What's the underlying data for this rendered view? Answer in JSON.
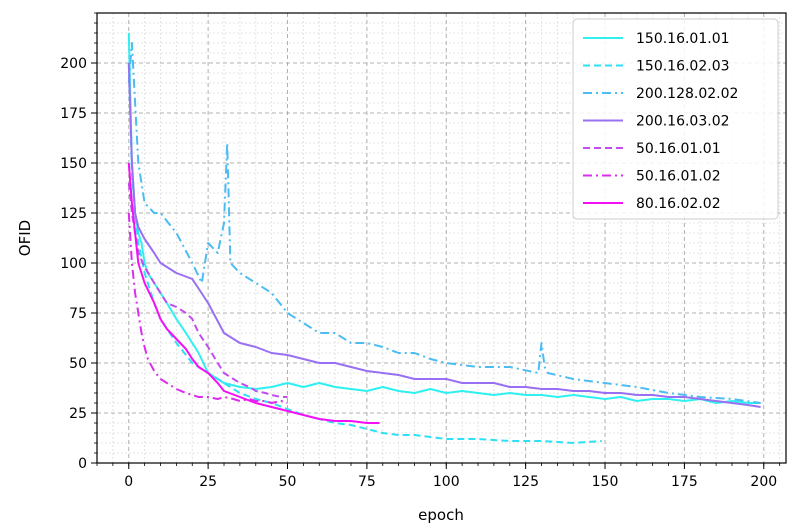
{
  "chart_data": {
    "type": "line",
    "title": "",
    "xlabel": "epoch",
    "ylabel": "OFID",
    "xlim": [
      -10,
      207
    ],
    "ylim": [
      0,
      225
    ],
    "xticks": [
      0,
      25,
      50,
      75,
      100,
      125,
      150,
      175,
      200
    ],
    "yticks": [
      0,
      25,
      50,
      75,
      100,
      125,
      150,
      175,
      200
    ],
    "grid": "major dashed, minor dotted",
    "legend_position": "top-right",
    "series": [
      {
        "name": "150.16.01.01",
        "color": "#2ff0f0",
        "dash": "solid",
        "x": [
          0,
          1,
          2,
          3,
          4,
          5,
          6,
          8,
          10,
          12,
          15,
          18,
          20,
          22,
          25,
          28,
          30,
          35,
          40,
          45,
          50,
          55,
          60,
          65,
          70,
          75,
          80,
          85,
          90,
          95,
          100,
          105,
          110,
          115,
          120,
          125,
          130,
          135,
          140,
          145,
          150,
          155,
          160,
          165,
          170,
          175,
          180,
          185,
          190,
          195,
          199
        ],
        "y": [
          215,
          150,
          125,
          115,
          110,
          100,
          95,
          90,
          85,
          80,
          72,
          65,
          60,
          55,
          45,
          42,
          40,
          38,
          37,
          38,
          40,
          38,
          40,
          38,
          37,
          36,
          38,
          36,
          35,
          37,
          35,
          36,
          35,
          34,
          35,
          34,
          34,
          33,
          34,
          33,
          32,
          33,
          31,
          32,
          32,
          31,
          32,
          30,
          31,
          30,
          30
        ]
      },
      {
        "name": "150.16.02.03",
        "color": "#2ee0f6",
        "dash": "dashed",
        "x": [
          0,
          1,
          2,
          3,
          5,
          8,
          10,
          15,
          20,
          25,
          30,
          35,
          40,
          45,
          50,
          55,
          60,
          65,
          70,
          75,
          80,
          85,
          90,
          95,
          100,
          110,
          120,
          130,
          140,
          149
        ],
        "y": [
          200,
          145,
          125,
          110,
          95,
          80,
          72,
          60,
          50,
          45,
          40,
          35,
          32,
          30,
          27,
          24,
          22,
          20,
          19,
          17,
          15,
          14,
          14,
          13,
          12,
          12,
          11,
          11,
          10,
          11
        ]
      },
      {
        "name": "200.128.02.02",
        "color": "#4cbcf2",
        "dash": "dashdot",
        "x": [
          0,
          1,
          2,
          3,
          5,
          8,
          10,
          15,
          20,
          23,
          25,
          28,
          30,
          31,
          32,
          35,
          40,
          45,
          50,
          55,
          60,
          65,
          70,
          75,
          80,
          85,
          90,
          95,
          100,
          110,
          120,
          129,
          130,
          131,
          132,
          140,
          150,
          160,
          170,
          180,
          190,
          199
        ],
        "y": [
          190,
          210,
          180,
          150,
          130,
          125,
          125,
          115,
          100,
          90,
          110,
          105,
          120,
          160,
          100,
          95,
          90,
          85,
          75,
          70,
          65,
          65,
          60,
          60,
          58,
          55,
          55,
          52,
          50,
          48,
          48,
          45,
          60,
          48,
          45,
          42,
          40,
          38,
          35,
          33,
          32,
          30
        ]
      },
      {
        "name": "200.16.03.02",
        "color": "#9970f2",
        "dash": "solid",
        "x": [
          0,
          1,
          2,
          3,
          5,
          8,
          10,
          15,
          20,
          25,
          30,
          35,
          40,
          45,
          50,
          55,
          60,
          65,
          70,
          75,
          80,
          85,
          90,
          95,
          100,
          105,
          110,
          115,
          120,
          125,
          130,
          135,
          140,
          145,
          150,
          155,
          160,
          165,
          170,
          175,
          180,
          185,
          190,
          195,
          199
        ],
        "y": [
          200,
          150,
          125,
          118,
          112,
          105,
          100,
          95,
          92,
          80,
          65,
          60,
          58,
          55,
          54,
          52,
          50,
          50,
          48,
          46,
          45,
          44,
          42,
          42,
          42,
          40,
          40,
          40,
          38,
          38,
          37,
          37,
          36,
          36,
          35,
          35,
          34,
          34,
          33,
          33,
          32,
          31,
          30,
          29,
          28
        ]
      },
      {
        "name": "50.16.01.01",
        "color": "#c24cee",
        "dash": "dashed",
        "x": [
          0,
          1,
          2,
          3,
          5,
          8,
          10,
          12,
          15,
          18,
          20,
          22,
          25,
          28,
          30,
          33,
          35,
          38,
          40,
          43,
          45,
          48,
          50
        ],
        "y": [
          140,
          125,
          115,
          105,
          98,
          90,
          85,
          80,
          78,
          75,
          72,
          65,
          58,
          50,
          45,
          42,
          40,
          38,
          36,
          35,
          34,
          33,
          33
        ]
      },
      {
        "name": "50.16.01.02",
        "color": "#dc2cee",
        "dash": "dashdot",
        "x": [
          0,
          1,
          2,
          3,
          4,
          5,
          6,
          8,
          10,
          12,
          15,
          18,
          20,
          22,
          25,
          28,
          30,
          33,
          35,
          38,
          40,
          43,
          45,
          48,
          50
        ],
        "y": [
          125,
          100,
          85,
          75,
          65,
          58,
          52,
          46,
          42,
          40,
          37,
          35,
          34,
          33,
          33,
          32,
          33,
          32,
          31,
          32,
          31,
          31,
          30,
          31,
          30
        ]
      },
      {
        "name": "80.16.02.02",
        "color": "#f50ff5",
        "dash": "solid",
        "x": [
          0,
          1,
          2,
          3,
          5,
          8,
          10,
          12,
          15,
          18,
          20,
          22,
          25,
          28,
          30,
          35,
          40,
          45,
          50,
          55,
          60,
          65,
          70,
          75,
          79
        ],
        "y": [
          150,
          130,
          115,
          100,
          90,
          80,
          72,
          67,
          62,
          57,
          52,
          48,
          45,
          40,
          36,
          33,
          30,
          28,
          26,
          24,
          22,
          21,
          21,
          20,
          20
        ]
      }
    ]
  }
}
